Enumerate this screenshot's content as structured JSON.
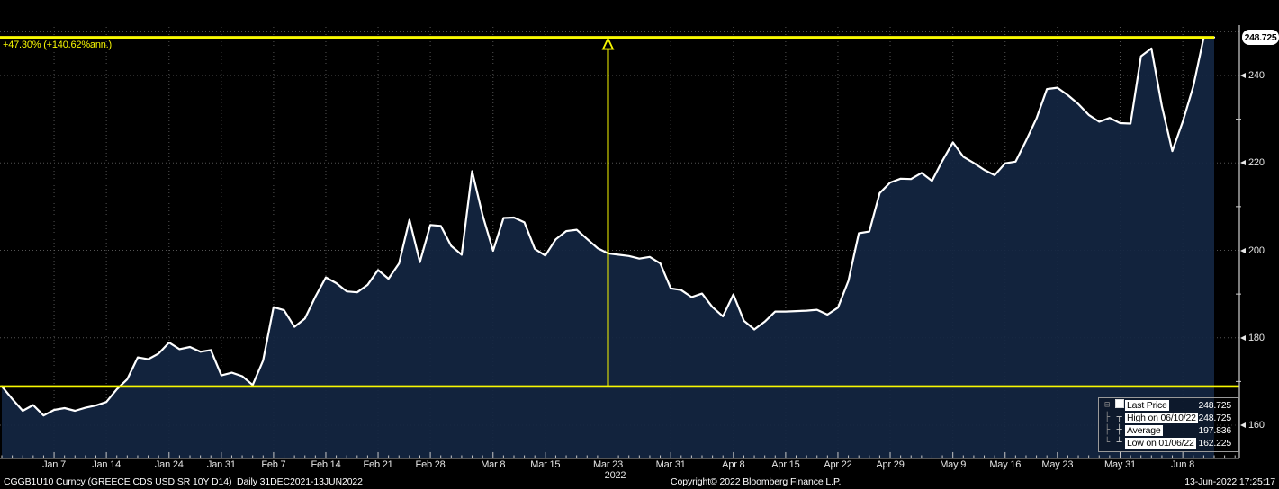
{
  "window": {
    "background": "#000000"
  },
  "annotations": {
    "pct_label": "+47.30% (+140.62%ann.)",
    "measure_high": 248.725,
    "measure_low": 168.86,
    "vline_index": 58,
    "axis_tag": "248.725"
  },
  "chart_data": {
    "type": "area",
    "title": "CGGB1U10 Curncy (GREECE CDS USD SR 10Y D14) Daily 31DEC2021-13JUN2022",
    "xlabel": "2022",
    "ylabel": "",
    "ylim": [
      152.5,
      251.5
    ],
    "grid": "dotted",
    "legend_position": "bottom-right",
    "y_ticks": [
      160,
      180,
      200,
      220,
      240
    ],
    "y_minor_ticks": [
      170,
      190,
      210,
      230
    ],
    "y_extra_gridline": 250,
    "x_tick_labels": [
      {
        "label": "Jan 7",
        "index": 5
      },
      {
        "label": "Jan 14",
        "index": 10
      },
      {
        "label": "Jan 24",
        "index": 16
      },
      {
        "label": "Jan 31",
        "index": 21
      },
      {
        "label": "Feb 7",
        "index": 26
      },
      {
        "label": "Feb 14",
        "index": 31
      },
      {
        "label": "Feb 21",
        "index": 36
      },
      {
        "label": "Feb 28",
        "index": 41
      },
      {
        "label": "Mar 8",
        "index": 47
      },
      {
        "label": "Mar 15",
        "index": 52
      },
      {
        "label": "Mar 23",
        "index": 58
      },
      {
        "label": "Mar 31",
        "index": 64
      },
      {
        "label": "Apr 8",
        "index": 70
      },
      {
        "label": "Apr 15",
        "index": 75
      },
      {
        "label": "Apr 22",
        "index": 80
      },
      {
        "label": "Apr 29",
        "index": 85
      },
      {
        "label": "May 9",
        "index": 91
      },
      {
        "label": "May 16",
        "index": 96
      },
      {
        "label": "May 23",
        "index": 101
      },
      {
        "label": "May 31",
        "index": 107
      },
      {
        "label": "Jun 8",
        "index": 113
      }
    ],
    "x_year_label": {
      "label": "2022",
      "index": 58
    },
    "series": [
      {
        "name": "Last Price",
        "dates": [
          "12/31",
          "01/03",
          "01/04",
          "01/05",
          "01/06",
          "01/07",
          "01/10",
          "01/11",
          "01/12",
          "01/13",
          "01/14",
          "01/17",
          "01/18",
          "01/19",
          "01/20",
          "01/21",
          "01/24",
          "01/25",
          "01/26",
          "01/27",
          "01/28",
          "01/31",
          "02/01",
          "02/02",
          "02/03",
          "02/04",
          "02/07",
          "02/08",
          "02/09",
          "02/10",
          "02/11",
          "02/14",
          "02/15",
          "02/16",
          "02/17",
          "02/18",
          "02/21",
          "02/22",
          "02/23",
          "02/24",
          "02/25",
          "02/28",
          "03/01",
          "03/02",
          "03/03",
          "03/04",
          "03/07",
          "03/08",
          "03/09",
          "03/10",
          "03/11",
          "03/14",
          "03/15",
          "03/16",
          "03/17",
          "03/18",
          "03/21",
          "03/22",
          "03/23",
          "03/24",
          "03/25",
          "03/28",
          "03/29",
          "03/30",
          "03/31",
          "04/01",
          "04/04",
          "04/05",
          "04/06",
          "04/07",
          "04/08",
          "04/11",
          "04/12",
          "04/13",
          "04/14",
          "04/15",
          "04/18",
          "04/19",
          "04/20",
          "04/21",
          "04/22",
          "04/25",
          "04/26",
          "04/27",
          "04/28",
          "04/29",
          "05/02",
          "05/03",
          "05/04",
          "05/05",
          "05/06",
          "05/09",
          "05/10",
          "05/11",
          "05/12",
          "05/13",
          "05/16",
          "05/17",
          "05/18",
          "05/19",
          "05/20",
          "05/23",
          "05/24",
          "05/25",
          "05/26",
          "05/27",
          "05/30",
          "05/31",
          "06/01",
          "06/02",
          "06/03",
          "06/06",
          "06/07",
          "06/08",
          "06/09",
          "06/10",
          "06/13"
        ],
        "values": [
          168.9,
          166.0,
          163.3,
          164.6,
          162.225,
          163.5,
          163.9,
          163.3,
          164.0,
          164.5,
          165.3,
          168.2,
          170.5,
          175.5,
          175.1,
          176.4,
          178.9,
          177.4,
          177.9,
          176.8,
          177.2,
          171.4,
          172.0,
          171.2,
          169.2,
          174.8,
          187.0,
          186.3,
          182.5,
          184.4,
          189.4,
          193.8,
          192.5,
          190.6,
          190.4,
          192.1,
          195.5,
          193.5,
          197.0,
          207.0,
          197.3,
          205.8,
          205.6,
          201.0,
          199.0,
          218.1,
          208.0,
          199.9,
          207.4,
          207.5,
          206.4,
          200.3,
          198.8,
          202.5,
          204.4,
          204.7,
          202.6,
          200.5,
          199.3,
          199.0,
          198.7,
          198.1,
          198.5,
          197.0,
          191.3,
          190.9,
          189.3,
          190.1,
          187.0,
          184.9,
          189.9,
          183.9,
          181.9,
          183.7,
          186.0,
          186.0,
          186.1,
          186.2,
          186.4,
          185.3,
          186.9,
          193.0,
          203.9,
          204.3,
          213.1,
          215.5,
          216.4,
          216.3,
          217.7,
          215.9,
          220.5,
          224.7,
          221.4,
          220.0,
          218.4,
          217.2,
          219.9,
          220.3,
          225.1,
          230.2,
          236.9,
          237.2,
          235.5,
          233.5,
          231.0,
          229.4,
          230.3,
          229.1,
          229.0,
          244.4,
          246.2,
          233.0,
          222.7,
          229.5,
          237.5,
          248.725,
          248.725
        ]
      }
    ],
    "colors": {
      "area_fill": "#132642",
      "price_line": "#ffffff",
      "annotation_yellow": "#f8f800",
      "grid": "#6a6a6a",
      "axis_text": "#e6e6e6"
    }
  },
  "legend": {
    "rows": [
      {
        "icon": "last-price-swatch",
        "label": "Last Price",
        "value": "248.725"
      },
      {
        "icon": "high-marker",
        "label": "High on 06/10/22",
        "value": "248.725"
      },
      {
        "icon": "average-marker",
        "label": "Average",
        "value": "197.836"
      },
      {
        "icon": "low-marker",
        "label": "Low on 01/06/22",
        "value": "162.225"
      }
    ]
  },
  "footer": {
    "security": "CGGB1U10 Curncy (GREECE CDS USD SR 10Y D14)",
    "range": "Daily 31DEC2021-13JUN2022",
    "copyright": "Copyright© 2022 Bloomberg Finance L.P.",
    "timestamp": "13-Jun-2022 17:25:17"
  }
}
